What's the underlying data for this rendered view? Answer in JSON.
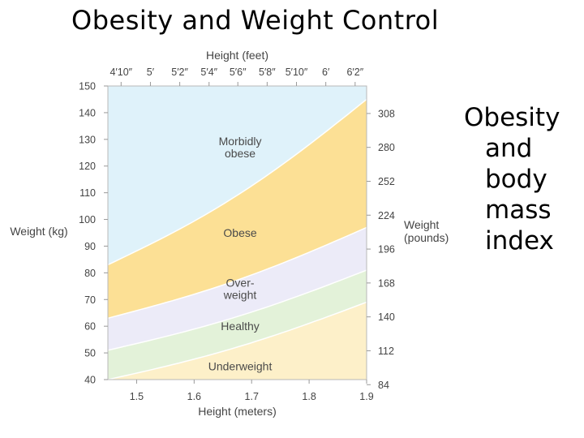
{
  "slide": {
    "title": "Obesity and Weight Control",
    "side_text": [
      "Obesity",
      "and",
      "body",
      "mass",
      "index"
    ]
  },
  "chart_data": {
    "type": "area",
    "title": "",
    "xlabel": "Height (meters)",
    "ylabel": "Weight (kg)",
    "top_axis_label": "Height (feet)",
    "right_axis_label": [
      "Weight",
      "(pounds)"
    ],
    "xlim": [
      1.45,
      1.9
    ],
    "ylim": [
      40,
      150
    ],
    "x_ticks": [
      1.5,
      1.6,
      1.7,
      1.8,
      1.9
    ],
    "y_ticks": [
      40,
      50,
      60,
      70,
      80,
      90,
      100,
      110,
      120,
      130,
      140,
      150
    ],
    "top_ticks": [
      {
        "label": "4′10″",
        "m": 1.473
      },
      {
        "label": "5′",
        "m": 1.524
      },
      {
        "label": "5′2″",
        "m": 1.575
      },
      {
        "label": "5′4″",
        "m": 1.626
      },
      {
        "label": "5′6″",
        "m": 1.676
      },
      {
        "label": "5′8″",
        "m": 1.727
      },
      {
        "label": "5′10″",
        "m": 1.778
      },
      {
        "label": "6′",
        "m": 1.829
      },
      {
        "label": "6′2″",
        "m": 1.88
      }
    ],
    "right_ticks": [
      {
        "label": "84",
        "kg": 38.1
      },
      {
        "label": "112",
        "kg": 50.8
      },
      {
        "label": "140",
        "kg": 63.5
      },
      {
        "label": "168",
        "kg": 76.2
      },
      {
        "label": "196",
        "kg": 88.9
      },
      {
        "label": "224",
        "kg": 101.6
      },
      {
        "label": "252",
        "kg": 114.3
      },
      {
        "label": "280",
        "kg": 127.0
      },
      {
        "label": "308",
        "kg": 139.7
      }
    ],
    "boundaries": {
      "x": [
        1.45,
        1.9
      ],
      "underweight_healthy": [
        40,
        69
      ],
      "healthy_overweight": [
        51,
        81
      ],
      "overweight_obese": [
        63,
        97
      ],
      "obese_morbidly_obese": [
        83,
        145
      ]
    },
    "regions": [
      {
        "name": "Underweight",
        "color": "#fdf0c9",
        "label_at": [
          1.68,
          45
        ]
      },
      {
        "name": "Healthy",
        "color": "#e3f2d9",
        "label_at": [
          1.68,
          60
        ]
      },
      {
        "name": [
          "Over-",
          "weight"
        ],
        "color": "#ecebf8",
        "label_at": [
          1.68,
          74
        ]
      },
      {
        "name": "Obese",
        "color": "#fce095",
        "label_at": [
          1.68,
          95
        ]
      },
      {
        "name": [
          "Morbidly",
          "obese"
        ],
        "color": "#dff2fa",
        "label_at": [
          1.68,
          127
        ]
      }
    ]
  }
}
